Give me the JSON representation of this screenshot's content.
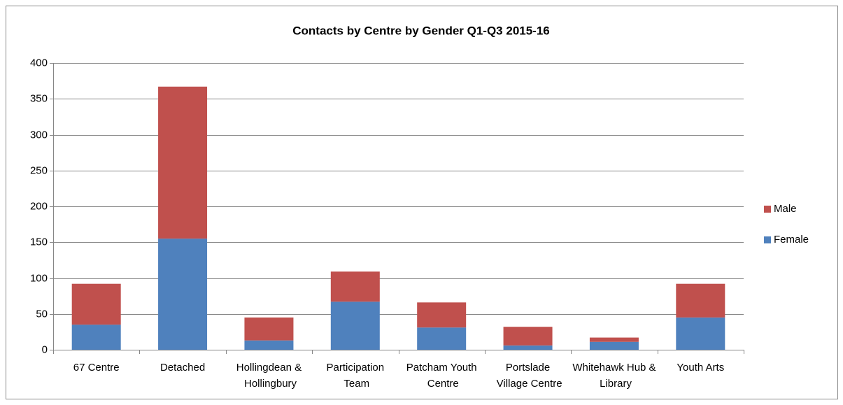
{
  "chart_data": {
    "type": "stacked_bar",
    "title": "Contacts by Centre by Gender Q1-Q3 2015-16",
    "categories": [
      "67 Centre",
      "Detached",
      "Hollingdean & Hollingbury",
      "Participation Team",
      "Patcham Youth Centre",
      "Portslade Village Centre",
      "Whitehawk Hub & Library",
      "Youth Arts"
    ],
    "series": [
      {
        "name": "Female",
        "color": "#4f81bd",
        "values": [
          35,
          155,
          13,
          67,
          31,
          6,
          11,
          45
        ]
      },
      {
        "name": "Male",
        "color": "#c0504d",
        "values": [
          57,
          212,
          32,
          42,
          35,
          26,
          6,
          47
        ]
      }
    ],
    "ylim": [
      0,
      400
    ],
    "yticks": [
      0,
      50,
      100,
      150,
      200,
      250,
      300,
      350,
      400
    ],
    "grid": true,
    "legend": "right"
  }
}
